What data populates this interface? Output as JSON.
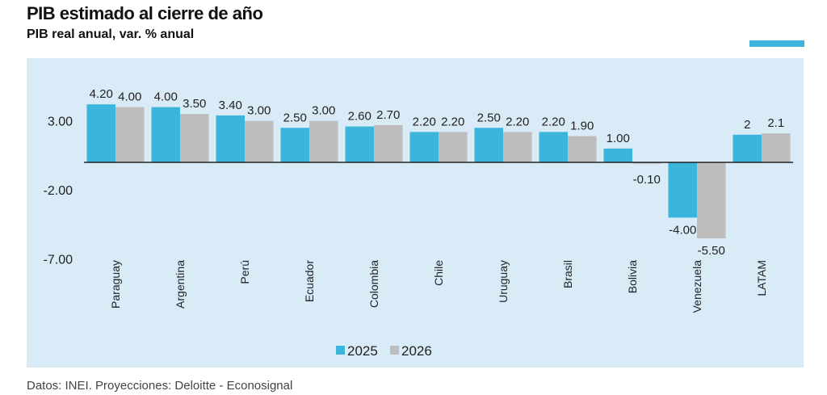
{
  "chart_data": {
    "type": "bar",
    "title": "PIB estimado al cierre de año",
    "subtitle": "PIB real anual, var. % anual",
    "categories": [
      "Paraguay",
      "Argentina",
      "Perú",
      "Ecuador",
      "Colombia",
      "Chile",
      "Uruguay",
      "Brasil",
      "Bolivia",
      "Venezuela",
      "LATAM"
    ],
    "series": [
      {
        "name": "2025",
        "color": "#3bb5dc",
        "values": [
          4.2,
          4.0,
          3.4,
          2.5,
          2.6,
          2.2,
          2.5,
          2.2,
          1.0,
          -4.0,
          2
        ],
        "labels": [
          "4.20",
          "4.00",
          "3.40",
          "2.50",
          "2.60",
          "2.20",
          "2.50",
          "2.20",
          "1.00",
          "-4.00",
          "2"
        ]
      },
      {
        "name": "2026",
        "color": "#bdbdbd",
        "values": [
          4.0,
          3.5,
          3.0,
          3.0,
          2.7,
          2.2,
          2.2,
          1.9,
          -0.1,
          -5.5,
          2.1
        ],
        "labels": [
          "4.00",
          "3.50",
          "3.00",
          "3.00",
          "2.70",
          "2.20",
          "2.20",
          "1.90",
          "-0.10",
          "-5.50",
          "2.1"
        ]
      }
    ],
    "yticks": [
      "3.00",
      "-2.00",
      "-7.00"
    ],
    "ytick_values": [
      3,
      -2,
      -7
    ],
    "ylim": [
      -7,
      4.5
    ],
    "legend_position": "bottom-center",
    "grid": false
  },
  "source": "Datos: INEI. Proyecciones: Deloitte - Econosignal"
}
